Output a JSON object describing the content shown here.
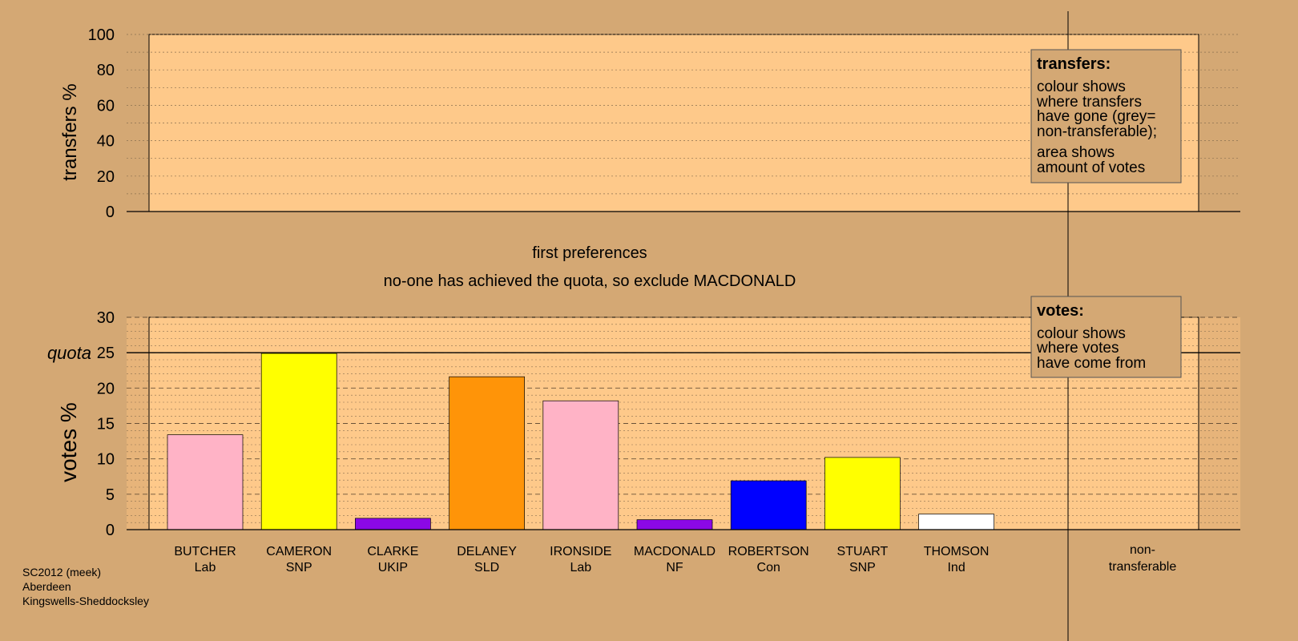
{
  "chart_data": [
    {
      "type": "bar",
      "ylabel": "transfers %",
      "ylim": [
        0,
        100
      ],
      "yticks": [
        "0",
        "20",
        "40",
        "60",
        "80",
        "100"
      ],
      "grid": true,
      "series": [],
      "legend": {
        "position": "top-right",
        "title": "transfers:",
        "lines_a": [
          "colour shows",
          "where transfers",
          "have gone (grey=",
          "non-transferable);"
        ],
        "lines_b": [
          "area shows",
          "amount of votes"
        ]
      }
    },
    {
      "type": "bar",
      "title": "first preferences",
      "subtitle": "no-one has achieved the quota, so exclude MACDONALD",
      "ylabel": "votes %",
      "ylim": [
        0,
        30
      ],
      "yticks": [
        "0",
        "5",
        "10",
        "15",
        "20",
        "25",
        "30"
      ],
      "grid": true,
      "quota": {
        "label": "quota",
        "value": 25
      },
      "categories": [
        {
          "name": "BUTCHER",
          "party": "Lab",
          "value": 13.4,
          "color": "#ffb3c6"
        },
        {
          "name": "CAMERON",
          "party": "SNP",
          "value": 24.9,
          "color": "#ffff00"
        },
        {
          "name": "CLARKE",
          "party": "UKIP",
          "value": 1.6,
          "color": "#8b08e6"
        },
        {
          "name": "DELANEY",
          "party": "SLD",
          "value": 21.6,
          "color": "#ff9408"
        },
        {
          "name": "IRONSIDE",
          "party": "Lab",
          "value": 18.2,
          "color": "#ffb3c6"
        },
        {
          "name": "MACDONALD",
          "party": "NF",
          "value": 1.4,
          "color": "#8b08e6"
        },
        {
          "name": "ROBERTSON",
          "party": "Con",
          "value": 6.9,
          "color": "#0000ff"
        },
        {
          "name": "STUART",
          "party": "SNP",
          "value": 10.2,
          "color": "#ffff00"
        },
        {
          "name": "THOMSON",
          "party": "Ind",
          "value": 2.2,
          "color": "#ffffff"
        }
      ],
      "nontransferable": {
        "line1": "non-",
        "line2": "transferable"
      },
      "legend": {
        "position": "top-right",
        "title": "votes:",
        "lines": [
          "colour shows",
          "where votes",
          "have come from"
        ]
      }
    }
  ],
  "footer": {
    "line1": "SC2012 (meek)",
    "line2": "Aberdeen",
    "line3": "Kingswells-Sheddocksley"
  }
}
